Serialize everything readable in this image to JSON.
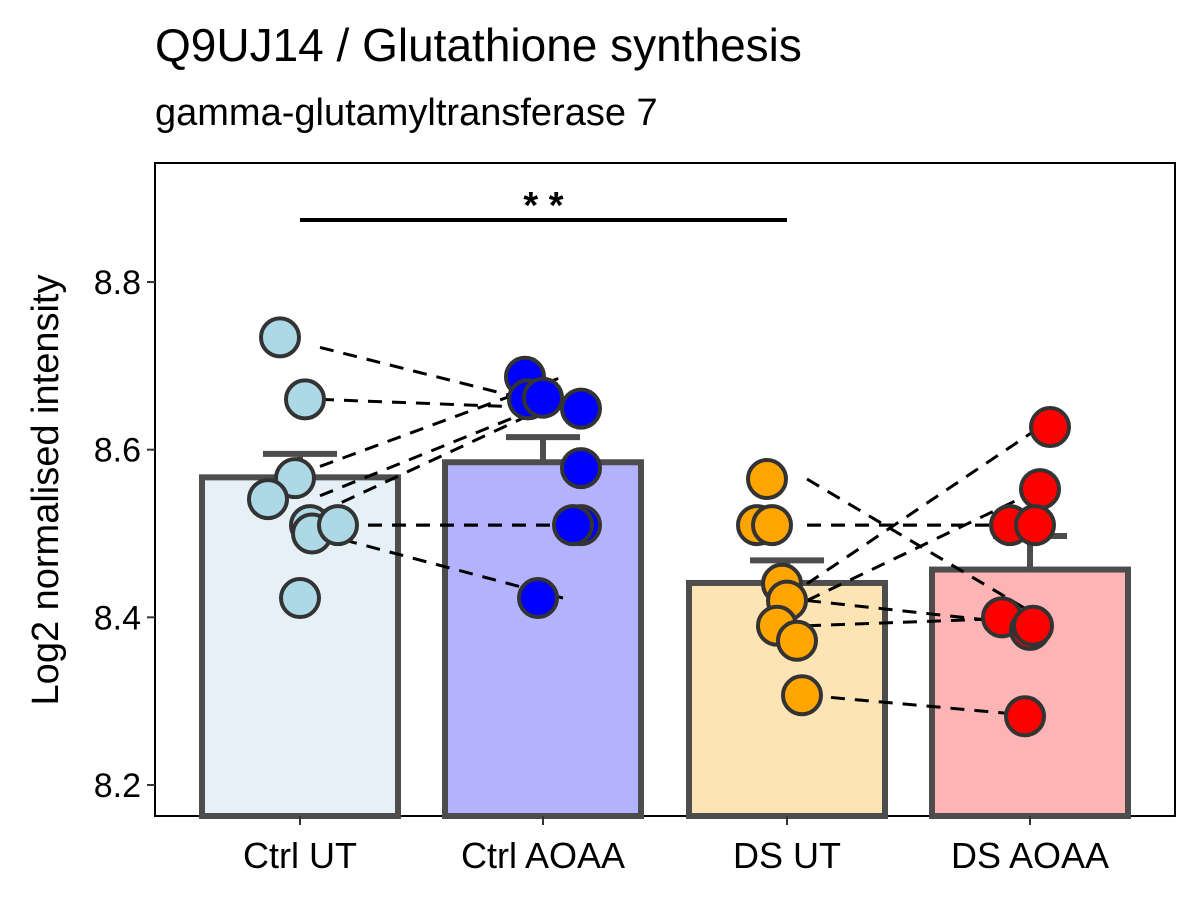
{
  "chart_data": {
    "type": "bar",
    "title": "Q9UJ14 /  Glutathione synthesis",
    "subtitle": "gamma-glutamyltransferase 7",
    "xlabel": "",
    "ylabel": "Log2 normalised intensity",
    "ylim": [
      8.163,
      8.942
    ],
    "yticks": [
      8.2,
      8.4,
      8.6,
      8.8
    ],
    "ytick_labels": [
      "8.2",
      "8.4",
      "8.6",
      "8.8"
    ],
    "categories": [
      "Ctrl UT",
      "Ctrl AOAA",
      "DS UT",
      "DS AOAA"
    ],
    "values": [
      8.567,
      8.585,
      8.441,
      8.457
    ],
    "error_upper": [
      8.595,
      8.615,
      8.468,
      8.497
    ],
    "bar_fill_colors": [
      "#e6f1f7",
      "#b3b3fd",
      "#fde4b5",
      "#fdb4b4"
    ],
    "point_colors": [
      "#add8e6",
      "#0000ff",
      "#ffa500",
      "#ff0000"
    ],
    "points": [
      [
        8.734,
        8.66,
        8.566,
        8.541,
        8.51,
        8.5,
        8.51,
        8.423
      ],
      [
        8.687,
        8.66,
        8.662,
        8.649,
        8.578,
        8.51,
        8.51,
        8.423
      ],
      [
        8.565,
        8.51,
        8.51,
        8.44,
        8.42,
        8.39,
        8.372,
        8.307
      ],
      [
        8.627,
        8.553,
        8.51,
        8.51,
        8.4,
        8.385,
        8.39,
        8.282
      ]
    ],
    "paired_lines": [
      [
        8.722,
        8.649
      ],
      [
        8.66,
        8.649
      ],
      [
        8.58,
        8.687
      ],
      [
        8.545,
        8.662
      ],
      [
        8.525,
        8.66
      ],
      [
        8.51,
        8.51
      ],
      [
        8.51,
        8.51
      ],
      [
        8.5,
        8.423
      ]
    ],
    "paired_lines_ds": [
      [
        8.565,
        8.4
      ],
      [
        8.51,
        8.51
      ],
      [
        8.51,
        8.51
      ],
      [
        8.44,
        8.627
      ],
      [
        8.42,
        8.553
      ],
      [
        8.42,
        8.39
      ],
      [
        8.39,
        8.4
      ],
      [
        8.307,
        8.282
      ]
    ],
    "significance": {
      "from": 0,
      "to": 2,
      "y": 8.874,
      "label": "* *"
    },
    "grid": false,
    "legend": "none"
  }
}
